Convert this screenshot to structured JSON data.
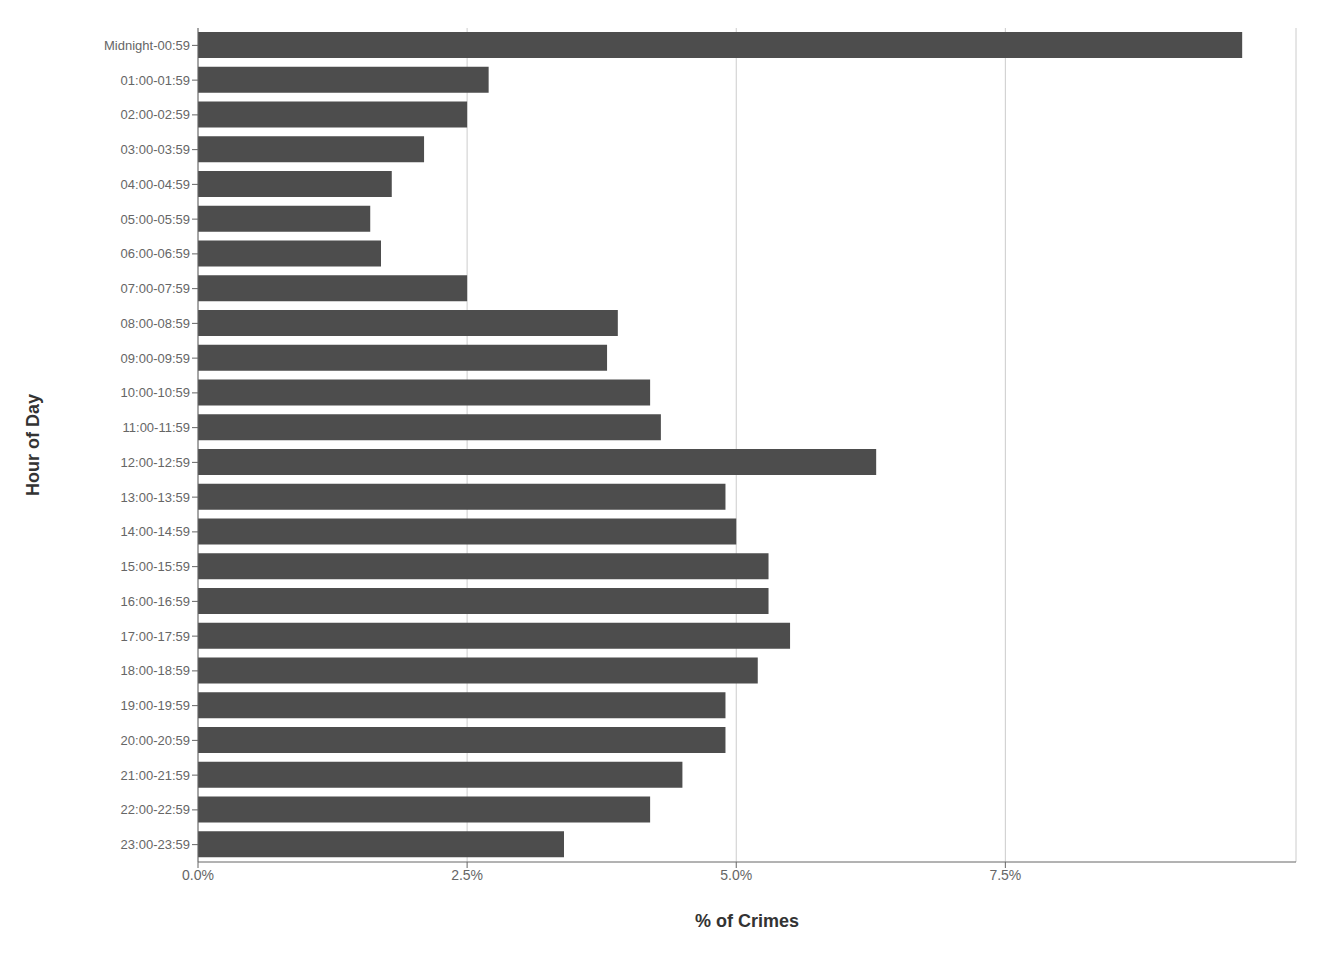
{
  "chart_data": {
    "type": "bar",
    "orientation": "horizontal",
    "categories": [
      "Midnight-00:59",
      "01:00-01:59",
      "02:00-02:59",
      "03:00-03:59",
      "04:00-04:59",
      "05:00-05:59",
      "06:00-06:59",
      "07:00-07:59",
      "08:00-08:59",
      "09:00-09:59",
      "10:00-10:59",
      "11:00-11:59",
      "12:00-12:59",
      "13:00-13:59",
      "14:00-14:59",
      "15:00-15:59",
      "16:00-16:59",
      "17:00-17:59",
      "18:00-18:59",
      "19:00-19:59",
      "20:00-20:59",
      "21:00-21:59",
      "22:00-22:59",
      "23:00-23:59"
    ],
    "values": [
      9.7,
      2.7,
      2.5,
      2.1,
      1.8,
      1.6,
      1.7,
      2.5,
      3.9,
      3.8,
      4.2,
      4.3,
      6.3,
      4.9,
      5.0,
      5.3,
      5.3,
      5.5,
      5.2,
      4.9,
      4.9,
      4.5,
      4.2,
      3.4
    ],
    "color": "#4d4d4d",
    "xlabel": "% of Crimes",
    "ylabel": "Hour of Day",
    "xlim": [
      0,
      10.2
    ],
    "xticks": [
      {
        "value": 0.0,
        "label": "0.0%"
      },
      {
        "value": 2.5,
        "label": "2.5%"
      },
      {
        "value": 5.0,
        "label": "5.0%"
      },
      {
        "value": 7.5,
        "label": "7.5%"
      }
    ],
    "grid": true
  }
}
